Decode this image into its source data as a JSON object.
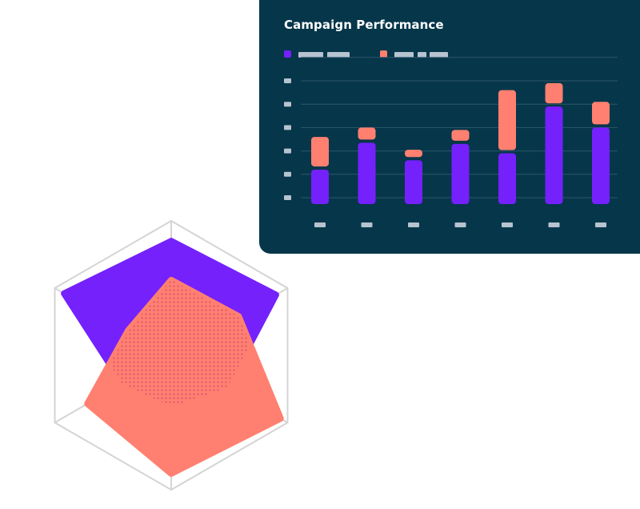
{
  "title": "Campaign Performance",
  "colors": {
    "card_bg": "#06364a",
    "series_a": "#7421fc",
    "series_b": "#ff8070",
    "placeholder": "#b7c3d0",
    "gridline": "#2d566a",
    "radar_grid": "#d4d4d4"
  },
  "chart_data": [
    {
      "type": "bar",
      "stacked": true,
      "title": "Campaign Performance",
      "categories": [
        "",
        "",
        "",
        "",
        "",
        "",
        ""
      ],
      "ylim": [
        0,
        6
      ],
      "yticks": [
        "",
        "",
        "",
        "",
        "",
        ""
      ],
      "grid": true,
      "legend": "top-left",
      "series": [
        {
          "values": [
            1.2,
            2.35,
            1.6,
            2.3,
            1.9,
            3.9,
            3.0
          ]
        },
        {
          "values": [
            1.4,
            0.65,
            0.45,
            0.6,
            2.7,
            1.0,
            1.1
          ]
        }
      ]
    },
    {
      "type": "radar",
      "axes": [
        "",
        "",
        "",
        "",
        "",
        ""
      ],
      "rmax": 1,
      "grid_levels": 2,
      "series": [
        {
          "values": [
            0.85,
            0.9,
            0.48,
            0.38,
            0.42,
            0.92
          ]
        },
        {
          "values": [
            0.56,
            0.58,
            0.94,
            0.88,
            0.72,
            0.37
          ]
        }
      ]
    }
  ]
}
